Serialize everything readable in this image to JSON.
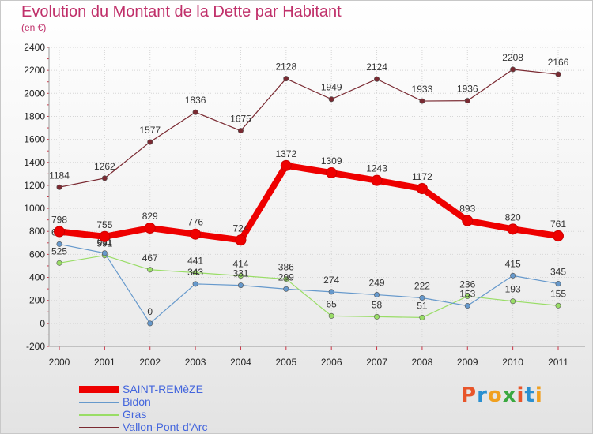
{
  "title": "Evolution du Montant de la Dette par Habitant",
  "subtitle": "(en €)",
  "brand": {
    "letters": [
      "P",
      "r",
      "o",
      "x",
      "i",
      "t",
      "i"
    ],
    "colors": [
      "#e8552a",
      "#2a8fd0",
      "#f0a020",
      "#3aa840",
      "#e8552a",
      "#2a8fd0",
      "#f0a020"
    ]
  },
  "chart_data": {
    "type": "line",
    "categories": [
      "2000",
      "2001",
      "2002",
      "2003",
      "2004",
      "2005",
      "2006",
      "2007",
      "2008",
      "2009",
      "2010",
      "2011"
    ],
    "ylim": [
      -200,
      2400
    ],
    "yticks": [
      "-200",
      "0",
      "200",
      "400",
      "600",
      "800",
      "1000",
      "1200",
      "1400",
      "1600",
      "1800",
      "2000",
      "2200",
      "2400"
    ],
    "grid": true,
    "legend_position": "bottom-left",
    "series": [
      {
        "name": "Vallon-Pont-d'Arc",
        "color": "#7a2a32",
        "values": [
          1184,
          1262,
          1577,
          1836,
          1675,
          2128,
          1949,
          2124,
          1933,
          1936,
          2208,
          2166
        ],
        "labels": [
          "1184",
          "1262",
          "1577",
          "1836",
          "1675",
          "2128",
          "1949",
          "2124",
          "1933",
          "1936",
          "2208",
          "2166"
        ]
      },
      {
        "name": "Gras",
        "color": "#99dd66",
        "values": [
          525,
          591,
          467,
          441,
          414,
          386,
          65,
          58,
          51,
          236,
          193,
          155
        ],
        "labels": [
          "525",
          "591",
          "467",
          "441",
          "414",
          "386",
          "65",
          "58",
          "51",
          "236",
          "193",
          "155"
        ]
      },
      {
        "name": "Bidon",
        "color": "#6699cc",
        "values": [
          689,
          611,
          0,
          343,
          331,
          299,
          274,
          249,
          222,
          153,
          415,
          345
        ],
        "labels": [
          "689",
          "611",
          "0",
          "343",
          "331",
          "299",
          "274",
          "249",
          "222",
          "153",
          "415",
          "345"
        ]
      },
      {
        "name": "SAINT-REMèZE",
        "color": "#ee0000",
        "values": [
          798,
          755,
          829,
          776,
          724,
          1372,
          1309,
          1243,
          1172,
          893,
          820,
          761
        ],
        "labels": [
          "798",
          "755",
          "829",
          "776",
          "724",
          "1372",
          "1309",
          "1243",
          "1172",
          "893",
          "820",
          "761"
        ]
      }
    ]
  },
  "legend": [
    {
      "name": "SAINT-REMèZE",
      "color": "#ee0000",
      "thick": true
    },
    {
      "name": "Bidon",
      "color": "#6699cc",
      "thick": false
    },
    {
      "name": "Gras",
      "color": "#99dd66",
      "thick": false
    },
    {
      "name": "Vallon-Pont-d'Arc",
      "color": "#7a2a32",
      "thick": false
    }
  ]
}
